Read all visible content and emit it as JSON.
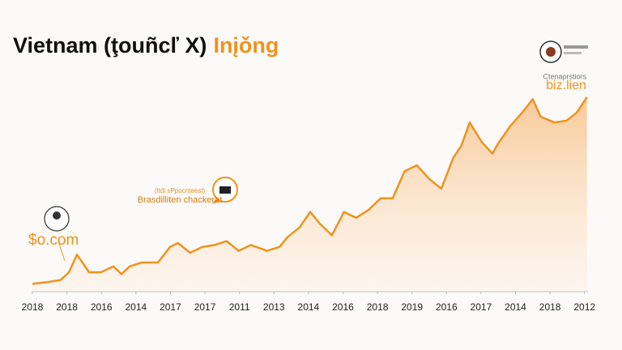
{
  "chart_data": {
    "type": "area",
    "title": "Vietnam (ţouñcľ X)",
    "title_highlight": "Inįǒng",
    "annotations": {
      "left": "$o.com",
      "middle_small": "(Itdl sPpocnteest)",
      "middle": "Brasdilliten chackerat",
      "right_small": "Ctenaprstiors",
      "right": "biz.lien"
    },
    "color": "#f0921e",
    "highlight_color": "#f0921e",
    "xlim": [
      0,
      16.1
    ],
    "ylim": [
      0,
      100
    ],
    "xticks": [
      {
        "value": 0,
        "label": "2018"
      },
      {
        "value": 1,
        "label": "2018"
      },
      {
        "value": 2,
        "label": "2016"
      },
      {
        "value": 3,
        "label": "2014"
      },
      {
        "value": 4,
        "label": "2017"
      },
      {
        "value": 5,
        "label": "2017"
      },
      {
        "value": 6,
        "label": "2011"
      },
      {
        "value": 7,
        "label": "2013"
      },
      {
        "value": 8,
        "label": "2014"
      },
      {
        "value": 9,
        "label": "2016"
      },
      {
        "value": 10,
        "label": "2018"
      },
      {
        "value": 11,
        "label": "2019"
      },
      {
        "value": 12,
        "label": "2016"
      },
      {
        "value": 13,
        "label": "2017"
      },
      {
        "value": 14,
        "label": "2014"
      },
      {
        "value": 15,
        "label": "2018"
      },
      {
        "value": 16,
        "label": "2012"
      }
    ],
    "x": [
      0,
      0.47,
      0.82,
      1.06,
      1.29,
      1.45,
      1.64,
      1.99,
      2.35,
      2.58,
      2.82,
      3.17,
      3.64,
      3.99,
      4.22,
      4.57,
      4.93,
      5.28,
      5.63,
      5.98,
      6.33,
      6.8,
      7.16,
      7.39,
      7.74,
      8.05,
      8.33,
      8.68,
      9.03,
      9.38,
      9.74,
      10.09,
      10.44,
      10.79,
      11.14,
      11.5,
      11.85,
      12.2,
      12.43,
      12.67,
      13.02,
      13.33,
      13.49,
      13.84,
      14.19,
      14.5,
      14.73,
      15.13,
      15.48,
      15.77,
      16.07
    ],
    "values": [
      4,
      5,
      6,
      10,
      19,
      15,
      10,
      10,
      13,
      9,
      13,
      15,
      15,
      23,
      25,
      20,
      23,
      24,
      26,
      21,
      24,
      21,
      23,
      28,
      33,
      41,
      35,
      29,
      41,
      38,
      42,
      48,
      48,
      62,
      65,
      58,
      53,
      69,
      75,
      87,
      77,
      71,
      76,
      85,
      92,
      99,
      90,
      87,
      88,
      92,
      100
    ]
  }
}
